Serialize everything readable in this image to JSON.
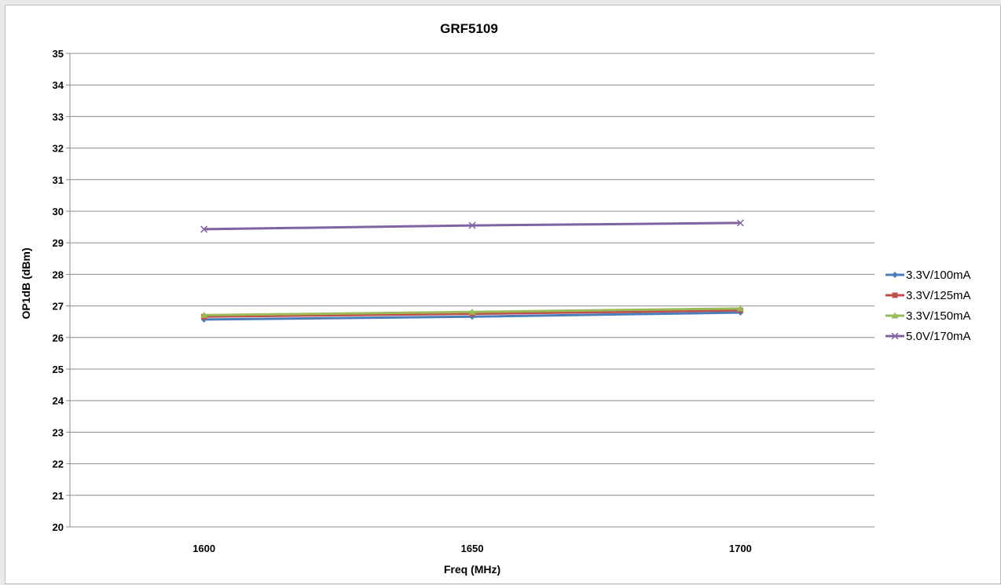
{
  "chart_data": {
    "type": "line",
    "title": "GRF5109",
    "xlabel": "Freq (MHz)",
    "ylabel": "OP1dB (dBm)",
    "x": [
      1600,
      1650,
      1700
    ],
    "x_tick_labels": [
      "1600",
      "1650",
      "1700"
    ],
    "ylim": [
      20,
      35
    ],
    "y_ticks": [
      20,
      21,
      22,
      23,
      24,
      25,
      26,
      27,
      28,
      29,
      30,
      31,
      32,
      33,
      34,
      35
    ],
    "grid": "horizontal",
    "legend_position": "right",
    "series": [
      {
        "name": "3.3V/100mA",
        "values": [
          26.57,
          26.66,
          26.79
        ],
        "color": "#4a7ebb",
        "marker": "diamond"
      },
      {
        "name": "3.3V/125mA",
        "values": [
          26.66,
          26.75,
          26.86
        ],
        "color": "#c0504d",
        "marker": "square"
      },
      {
        "name": "3.3V/150mA",
        "values": [
          26.71,
          26.81,
          26.92
        ],
        "color": "#9bbb59",
        "marker": "triangle"
      },
      {
        "name": "5.0V/170mA",
        "values": [
          29.43,
          29.55,
          29.63
        ],
        "color": "#8064a2",
        "marker": "x"
      }
    ]
  }
}
